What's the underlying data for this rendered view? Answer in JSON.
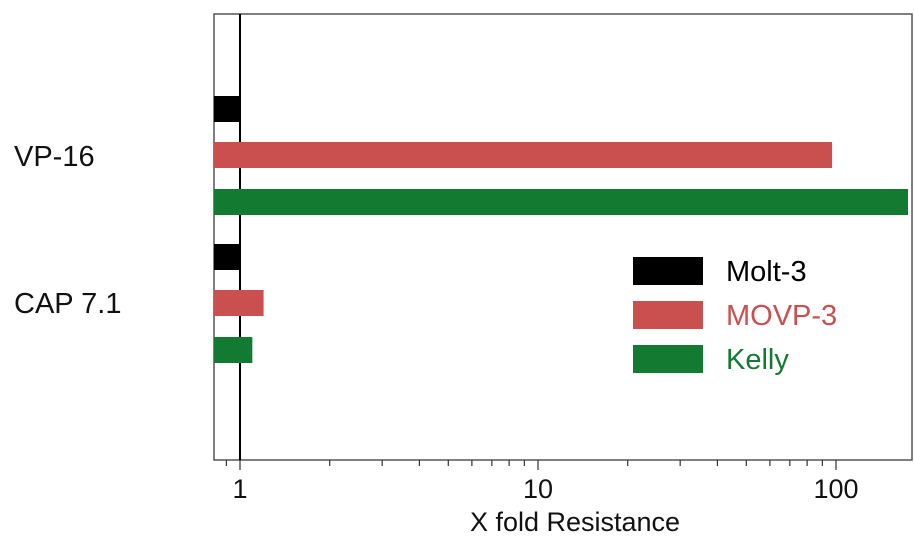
{
  "chart_data": {
    "type": "bar",
    "orientation": "horizontal",
    "x_scale": "log",
    "xlim": [
      0.8,
      180
    ],
    "xlabel": "X fold Resistance",
    "ylabel": "",
    "title": "",
    "x_ticks": [
      {
        "value": 1,
        "label": "1"
      },
      {
        "value": 10,
        "label": "10"
      },
      {
        "value": 100,
        "label": "100"
      }
    ],
    "reference_line": 1,
    "grid": false,
    "legend_position": "right",
    "categories": [
      "VP-16",
      "CAP 7.1"
    ],
    "series": [
      {
        "name": "Molt-3",
        "color": "#000000",
        "label_color": "#000000",
        "values": [
          1,
          1
        ]
      },
      {
        "name": "MOVP-3",
        "color": "#c9504f",
        "label_color": "#c9504f",
        "values": [
          97,
          1.2
        ]
      },
      {
        "name": "Kelly",
        "color": "#137a32",
        "label_color": "#137a32",
        "values": [
          180,
          1.1
        ]
      }
    ]
  }
}
